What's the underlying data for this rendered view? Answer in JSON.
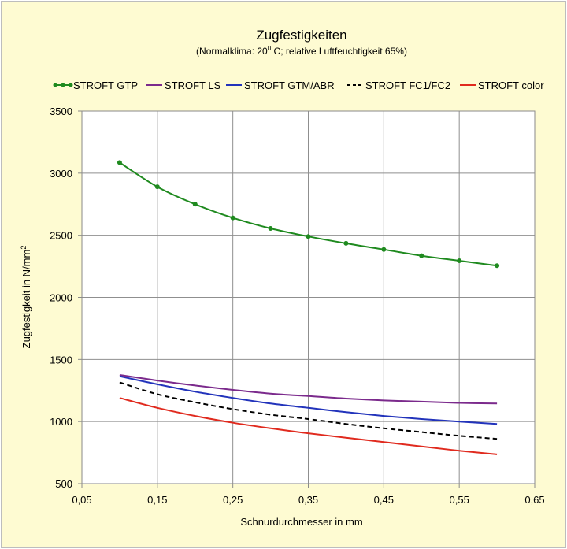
{
  "chart_data": {
    "type": "line",
    "title": "Zugfestigkeiten",
    "subtitle_pre": "(Normalklima: 20",
    "subtitle_sup": "0",
    "subtitle_post": " C;  relative Luftfeuchtigkeit 65%)",
    "xlabel": "Schnurdurchmesser in mm",
    "ylabel_main": "Zugfestigkeit in N/mm",
    "ylabel_sup": "2",
    "xlim": [
      0.05,
      0.65
    ],
    "ylim": [
      500,
      3500
    ],
    "x_ticks": [
      0.05,
      0.15,
      0.25,
      0.35,
      0.45,
      0.55,
      0.65
    ],
    "x_tick_labels": [
      "0,05",
      "0,15",
      "0,25",
      "0,35",
      "0,45",
      "0,55",
      "0,65"
    ],
    "y_ticks": [
      500,
      1000,
      1500,
      2000,
      2500,
      3000,
      3500
    ],
    "y_tick_labels": [
      "500",
      "1000",
      "1500",
      "2000",
      "2500",
      "3000",
      "3500"
    ],
    "grid": true,
    "legend_position": "top",
    "series": [
      {
        "name": "STROFT GTP",
        "color": "#1f8a1f",
        "style": "solid",
        "markers": true,
        "x": [
          0.1,
          0.15,
          0.2,
          0.25,
          0.3,
          0.35,
          0.4,
          0.45,
          0.5,
          0.55,
          0.6
        ],
        "y": [
          3085,
          2890,
          2750,
          2640,
          2555,
          2490,
          2435,
          2385,
          2335,
          2295,
          2255
        ]
      },
      {
        "name": "STROFT LS",
        "color": "#7b2a8c",
        "style": "solid",
        "markers": false,
        "x": [
          0.1,
          0.15,
          0.2,
          0.25,
          0.3,
          0.35,
          0.4,
          0.45,
          0.5,
          0.55,
          0.6
        ],
        "y": [
          1375,
          1330,
          1290,
          1255,
          1225,
          1205,
          1185,
          1170,
          1160,
          1150,
          1145
        ]
      },
      {
        "name": "STROFT GTM/ABR",
        "color": "#2233bb",
        "style": "solid",
        "markers": false,
        "x": [
          0.1,
          0.15,
          0.2,
          0.25,
          0.3,
          0.35,
          0.4,
          0.45,
          0.5,
          0.55,
          0.6
        ],
        "y": [
          1365,
          1300,
          1240,
          1190,
          1145,
          1110,
          1075,
          1045,
          1020,
          1000,
          980
        ]
      },
      {
        "name": "STROFT FC1/FC2",
        "color": "#000000",
        "style": "dashed",
        "markers": false,
        "x": [
          0.1,
          0.15,
          0.2,
          0.25,
          0.3,
          0.35,
          0.4,
          0.45,
          0.5,
          0.55,
          0.6
        ],
        "y": [
          1315,
          1220,
          1155,
          1100,
          1055,
          1020,
          980,
          945,
          915,
          885,
          860
        ]
      },
      {
        "name": "STROFT color",
        "color": "#e02a1e",
        "style": "solid",
        "markers": false,
        "x": [
          0.1,
          0.15,
          0.2,
          0.25,
          0.3,
          0.35,
          0.4,
          0.45,
          0.5,
          0.55,
          0.6
        ],
        "y": [
          1190,
          1110,
          1045,
          990,
          945,
          905,
          870,
          835,
          800,
          765,
          735
        ]
      }
    ]
  }
}
